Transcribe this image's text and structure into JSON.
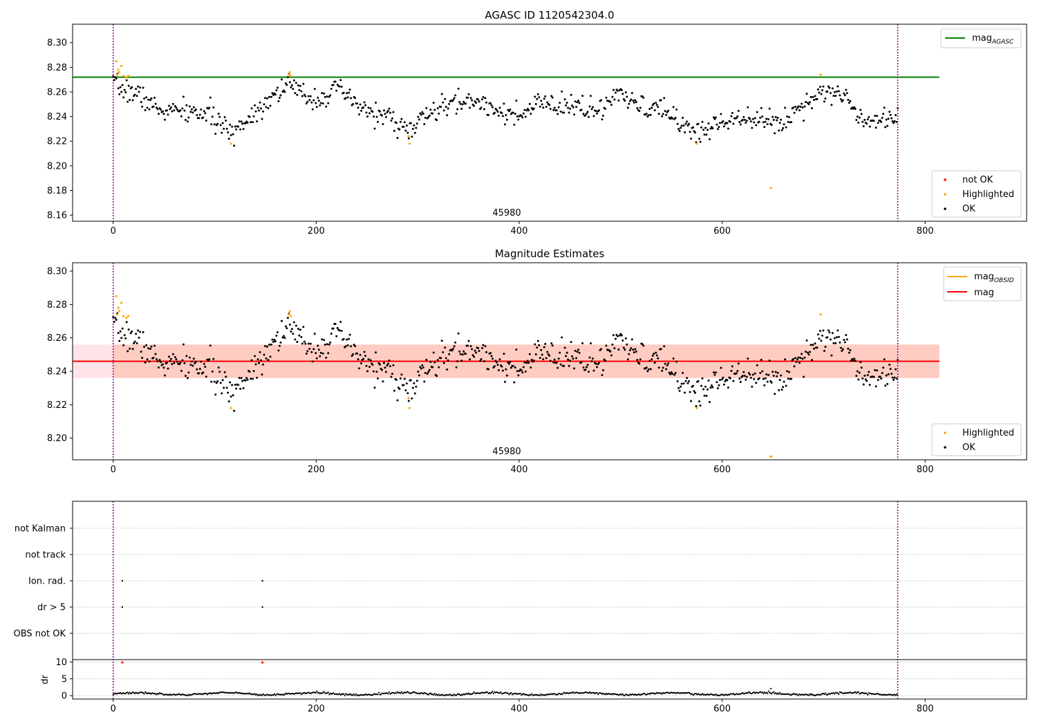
{
  "colors": {
    "ok": "#000000",
    "highlighted": "#ffa500",
    "not_ok": "#ff0000",
    "mag_agasc": "#008000",
    "mag_obsid": "#ffa500",
    "mag": "#ff0000",
    "obs_marker": "#800080",
    "band_outer": "#ffc0cb",
    "band_inner": "#ffa07a",
    "grid": "#b0b0b0"
  },
  "chart_data": [
    {
      "type": "scatter",
      "title": "AGASC ID 1120542304.0",
      "annotation": "45980",
      "xlim": [
        -40,
        900
      ],
      "ylim": [
        8.155,
        8.315
      ],
      "xticks": [
        0,
        200,
        400,
        600,
        800
      ],
      "yticks": [
        "8.16",
        "8.18",
        "8.20",
        "8.22",
        "8.24",
        "8.26",
        "8.28",
        "8.30"
      ],
      "hlines": [
        {
          "name": "mag_AGASC",
          "y": 8.272,
          "x": [
            -40,
            814
          ],
          "color": "#008000"
        }
      ],
      "vlines": [
        0,
        773
      ],
      "legend_top": [
        "mag_AGASC"
      ],
      "legend_bottom": [
        "not OK",
        "Highlighted",
        "OK"
      ],
      "highlighted_points": [
        [
          3,
          8.285
        ],
        [
          4,
          8.274
        ],
        [
          5,
          8.278
        ],
        [
          6,
          8.276
        ],
        [
          8,
          8.281
        ],
        [
          10,
          8.273
        ],
        [
          13,
          8.272
        ],
        [
          15,
          8.273
        ],
        [
          116,
          8.218
        ],
        [
          173,
          8.274
        ],
        [
          174,
          8.276
        ],
        [
          175,
          8.273
        ],
        [
          291,
          8.224
        ],
        [
          292,
          8.218
        ],
        [
          575,
          8.218
        ],
        [
          648,
          8.182
        ],
        [
          697,
          8.274
        ]
      ],
      "ok_points": {
        "seed": 7,
        "n": 760,
        "x_range": [
          0,
          773
        ],
        "trend": [
          [
            0,
            8.266
          ],
          [
            10,
            8.262
          ],
          [
            25,
            8.258
          ],
          [
            45,
            8.245
          ],
          [
            70,
            8.244
          ],
          [
            95,
            8.242
          ],
          [
            115,
            8.226
          ],
          [
            135,
            8.24
          ],
          [
            150,
            8.252
          ],
          [
            172,
            8.267
          ],
          [
            182,
            8.26
          ],
          [
            200,
            8.254
          ],
          [
            222,
            8.262
          ],
          [
            245,
            8.246
          ],
          [
            270,
            8.24
          ],
          [
            292,
            8.228
          ],
          [
            310,
            8.242
          ],
          [
            340,
            8.252
          ],
          [
            360,
            8.252
          ],
          [
            380,
            8.246
          ],
          [
            400,
            8.238
          ],
          [
            420,
            8.252
          ],
          [
            440,
            8.246
          ],
          [
            460,
            8.25
          ],
          [
            480,
            8.242
          ],
          [
            493,
            8.258
          ],
          [
            520,
            8.248
          ],
          [
            545,
            8.244
          ],
          [
            575,
            8.226
          ],
          [
            600,
            8.236
          ],
          [
            625,
            8.242
          ],
          [
            650,
            8.234
          ],
          [
            660,
            8.236
          ],
          [
            680,
            8.25
          ],
          [
            700,
            8.262
          ],
          [
            720,
            8.256
          ],
          [
            740,
            8.238
          ],
          [
            773,
            8.24
          ]
        ],
        "scatter": 0.0045
      }
    },
    {
      "type": "scatter",
      "title": "Magnitude Estimates",
      "annotation": "45980",
      "xlim": [
        -40,
        900
      ],
      "ylim": [
        8.187,
        8.305
      ],
      "xticks": [
        0,
        200,
        400,
        600,
        800
      ],
      "yticks": [
        "8.20",
        "8.22",
        "8.24",
        "8.26",
        "8.28",
        "8.30"
      ],
      "hlines": [
        {
          "name": "mag_OBSID",
          "y": 8.246,
          "x": [
            0,
            814
          ],
          "color": "#ffa500"
        },
        {
          "name": "mag",
          "y": 8.246,
          "x": [
            -40,
            814
          ],
          "color": "#ff0000"
        }
      ],
      "bands": [
        {
          "y": [
            8.236,
            8.256
          ],
          "x": [
            -40,
            814
          ],
          "color": "#ffc0cb"
        },
        {
          "y": [
            8.236,
            8.256
          ],
          "x": [
            0,
            814
          ],
          "color": "#ffa07a"
        }
      ],
      "vlines": [
        0,
        773
      ],
      "legend_top": [
        "mag_OBSID",
        "mag"
      ],
      "legend_bottom": [
        "Highlighted",
        "OK"
      ],
      "highlighted_points": [
        [
          3,
          8.285
        ],
        [
          4,
          8.274
        ],
        [
          5,
          8.278
        ],
        [
          6,
          8.276
        ],
        [
          8,
          8.281
        ],
        [
          10,
          8.273
        ],
        [
          13,
          8.272
        ],
        [
          15,
          8.273
        ],
        [
          116,
          8.218
        ],
        [
          173,
          8.274
        ],
        [
          174,
          8.276
        ],
        [
          175,
          8.273
        ],
        [
          291,
          8.224
        ],
        [
          292,
          8.218
        ],
        [
          575,
          8.218
        ],
        [
          697,
          8.274
        ]
      ],
      "offscale_markers": [
        [
          648,
          8.188
        ]
      ],
      "ok_points": {
        "same_as": 0
      }
    },
    {
      "type": "scatter",
      "title": "",
      "xlim": [
        -40,
        900
      ],
      "xticks": [
        0,
        200,
        400,
        600,
        800
      ],
      "vlines": [
        0,
        773
      ],
      "flag_rows": [
        "not Kalman",
        "not track",
        "Ion. rad.",
        "dr > 5",
        "OBS not OK"
      ],
      "flag_points": [
        {
          "row": "Ion. rad.",
          "x": [
            9,
            147
          ]
        },
        {
          "row": "dr > 5",
          "x": [
            9,
            147
          ]
        }
      ],
      "dr_panel": {
        "ylabel": "dr",
        "yticks": [
          "0",
          "5",
          "10"
        ],
        "ylim": [
          -1,
          10.7
        ],
        "clipped_points": [
          [
            9,
            10
          ],
          [
            147,
            10
          ]
        ],
        "outlier": [
          [
            648,
            2.1
          ]
        ],
        "baseline": {
          "seed": 3,
          "n": 760,
          "x_range": [
            0,
            773
          ],
          "mean": 0.55,
          "scatter": 0.35
        }
      }
    }
  ]
}
